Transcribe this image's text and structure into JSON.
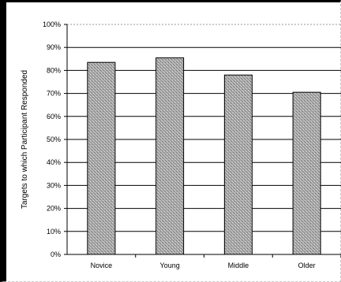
{
  "chart_data": {
    "type": "bar",
    "title": "",
    "xlabel": "",
    "ylabel": "Targets to which Participant Responded",
    "categories": [
      "Novice",
      "Young",
      "Middle",
      "Older"
    ],
    "values": [
      83.5,
      85.5,
      78,
      70.5
    ],
    "ylim": [
      0,
      100
    ],
    "yticks": [
      "0%",
      "10%",
      "20%",
      "30%",
      "40%",
      "50%",
      "60%",
      "70%",
      "80%",
      "90%",
      "100%"
    ],
    "grid": true,
    "legend": "none",
    "bar_color": "#a6a6a6"
  }
}
